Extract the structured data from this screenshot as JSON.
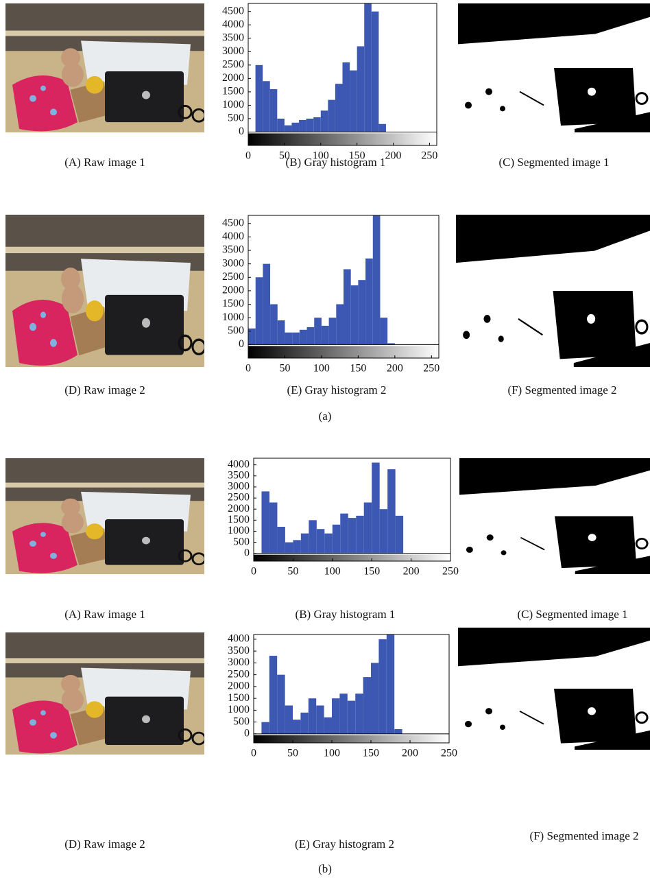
{
  "group_labels": [
    "(a)",
    "(b)"
  ],
  "image_captions": [
    "(A) Raw image 1",
    "(C) Segmented image 1",
    "(D) Raw image 2",
    "(F) Segmented image 2",
    "(A) Raw image 1",
    "(C) Segmented image 1",
    "(D) Raw image 2",
    "(F) Segmented image 2"
  ],
  "chart_data": [
    {
      "type": "histogram",
      "caption": "(B) Gray histogram 1",
      "color": "#3d58b3",
      "bins": [
        0,
        10,
        20,
        30,
        40,
        50,
        60,
        70,
        80,
        90,
        100,
        110,
        120,
        130,
        140,
        150,
        160,
        170,
        180,
        190,
        200,
        210,
        220,
        230,
        240,
        250,
        260
      ],
      "values": [
        0,
        2500,
        1900,
        1600,
        500,
        250,
        350,
        450,
        500,
        550,
        800,
        1200,
        1800,
        2600,
        2300,
        3200,
        4800,
        4500,
        300,
        0,
        0,
        0,
        0,
        0,
        0,
        0
      ],
      "xlim": [
        0,
        260
      ],
      "xticks": [
        0,
        50,
        100,
        150,
        200,
        250
      ],
      "ylim": [
        -500,
        4800
      ],
      "yticks": [
        0,
        500,
        1000,
        1500,
        2000,
        2500,
        3000,
        3500,
        4000,
        4500
      ]
    },
    {
      "type": "histogram",
      "caption": "(E) Gray histogram 2",
      "color": "#3d58b3",
      "bins": [
        0,
        10,
        20,
        30,
        40,
        50,
        60,
        70,
        80,
        90,
        100,
        110,
        120,
        130,
        140,
        150,
        160,
        170,
        180,
        190,
        200,
        210,
        220,
        230,
        240,
        250,
        260
      ],
      "values": [
        600,
        2500,
        3000,
        1500,
        900,
        450,
        450,
        550,
        650,
        1000,
        700,
        1000,
        1500,
        2800,
        2200,
        2400,
        3200,
        4800,
        1000,
        50,
        0,
        0,
        0,
        0,
        0,
        0
      ],
      "xlim": [
        0,
        260
      ],
      "xticks": [
        0,
        50,
        100,
        150,
        200,
        250
      ],
      "ylim": [
        -500,
        4800
      ],
      "yticks": [
        0,
        500,
        1000,
        1500,
        2000,
        2500,
        3000,
        3500,
        4000,
        4500
      ]
    },
    {
      "type": "histogram",
      "caption": "(B) Gray histogram 1",
      "color": "#3d58b3",
      "bins": [
        0,
        10,
        20,
        30,
        40,
        50,
        60,
        70,
        80,
        90,
        100,
        110,
        120,
        130,
        140,
        150,
        160,
        170,
        180,
        190,
        200,
        210,
        220,
        230,
        240,
        250,
        260
      ],
      "values": [
        0,
        2800,
        2300,
        1200,
        500,
        600,
        900,
        1500,
        1100,
        900,
        1300,
        1800,
        1600,
        1700,
        2300,
        4100,
        2000,
        3800,
        1700,
        0,
        0,
        0,
        0,
        0,
        0,
        0
      ],
      "xlim": [
        0,
        250
      ],
      "xticks": [
        0,
        50,
        100,
        150,
        200,
        250
      ],
      "ylim": [
        -350,
        4300
      ],
      "yticks": [
        0,
        500,
        1000,
        1500,
        2000,
        2500,
        3000,
        3500,
        4000
      ]
    },
    {
      "type": "histogram",
      "caption": "(E) Gray histogram 2",
      "color": "#3d58b3",
      "bins": [
        0,
        10,
        20,
        30,
        40,
        50,
        60,
        70,
        80,
        90,
        100,
        110,
        120,
        130,
        140,
        150,
        160,
        170,
        180,
        190,
        200,
        210,
        220,
        230,
        240,
        250,
        260
      ],
      "values": [
        0,
        500,
        3300,
        2500,
        1200,
        600,
        900,
        1500,
        1200,
        700,
        1500,
        1700,
        1400,
        1700,
        2400,
        3000,
        4000,
        4200,
        200,
        0,
        0,
        0,
        0,
        0,
        0,
        0
      ],
      "xlim": [
        0,
        250
      ],
      "xticks": [
        0,
        50,
        100,
        150,
        200,
        250
      ],
      "ylim": [
        -380,
        4200
      ],
      "yticks": [
        0,
        500,
        1000,
        1500,
        2000,
        2500,
        3000,
        3500,
        4000
      ]
    }
  ]
}
